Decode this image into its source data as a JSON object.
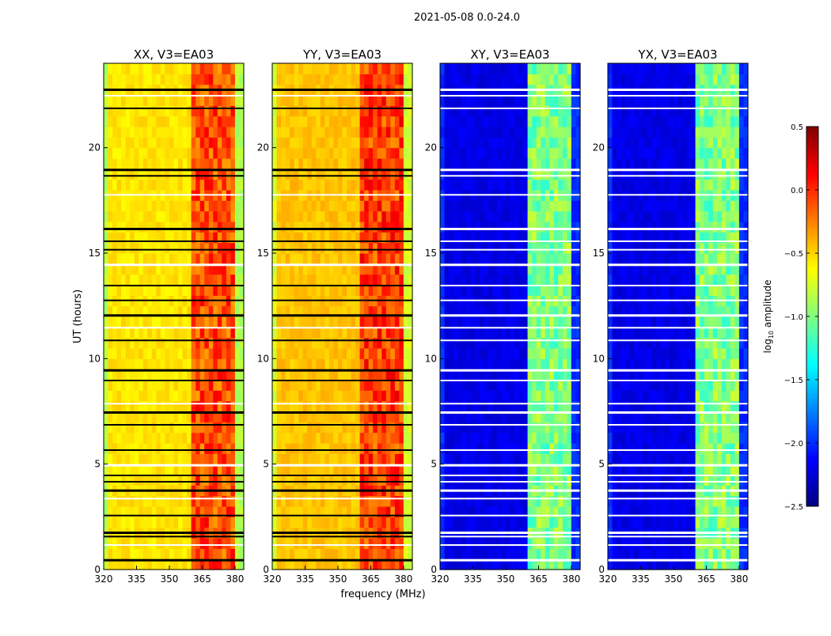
{
  "chart_data": {
    "type": "heatmap",
    "suptitle": "2021-05-08 0.0-24.0",
    "xlabel": "frequency (MHz)",
    "ylabel": "UT (hours)",
    "xlim": [
      320,
      384
    ],
    "ylim": [
      0,
      24
    ],
    "xticks": [
      "320",
      "335",
      "350",
      "365",
      "380"
    ],
    "yticks": [
      "0",
      "5",
      "10",
      "15",
      "20"
    ],
    "colormap": "jet",
    "colorbar": {
      "label": "log10 amplitude",
      "label_main": "log",
      "label_sub": "10",
      "label_rest": " amplitude",
      "range": [
        -2.5,
        0.5
      ],
      "ticks": [
        "0.5",
        "0.0",
        "−0.5",
        "−1.0",
        "−1.5",
        "−2.0",
        "−2.5"
      ]
    },
    "bright_bands_mhz": [
      [
        361,
        365.5
      ],
      [
        366.5,
        370.5
      ],
      [
        371,
        375
      ],
      [
        376,
        380
      ]
    ],
    "flagged_hours": [
      0.5,
      1.2,
      1.6,
      1.8,
      2.6,
      3.4,
      3.8,
      4.2,
      4.5,
      5.0,
      5.7,
      6.9,
      7.5,
      7.9,
      9.0,
      9.5,
      10.9,
      11.5,
      12.1,
      12.8,
      13.5,
      14.5,
      15.2,
      15.6,
      16.2,
      17.8,
      18.7,
      19.0,
      21.9,
      22.5,
      22.8
    ],
    "panels": [
      {
        "title": "XX, V3=EA03",
        "base": -0.55,
        "band": -0.1,
        "flag_color": "#000000"
      },
      {
        "title": "YY, V3=EA03",
        "base": -0.45,
        "band": -0.05,
        "flag_color": "#000000"
      },
      {
        "title": "XY, V3=EA03",
        "base": -2.2,
        "band": -1.0,
        "flag_color": "#ffffff"
      },
      {
        "title": "YX, V3=EA03",
        "base": -2.2,
        "band": -1.0,
        "flag_color": "#ffffff"
      }
    ]
  }
}
